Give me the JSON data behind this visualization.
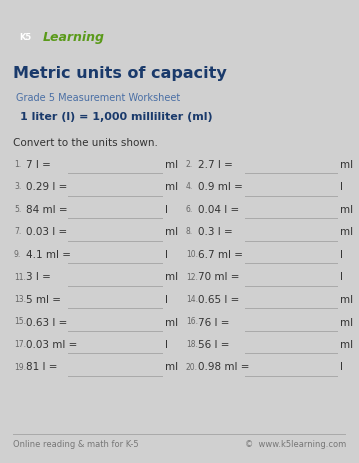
{
  "title": "Metric units of capacity",
  "subtitle": "Grade 5 Measurement Worksheet",
  "formula_box": "1 liter (l) = 1,000 milliliter (ml)",
  "instruction": "Convert to the units shown.",
  "border_color": "#2a5b8c",
  "title_color": "#1a3a6b",
  "subtitle_color": "#4a6fa5",
  "formula_bg": "#d0d0d0",
  "text_color": "#333333",
  "line_color": "#aaaaaa",
  "footer_left": "Online reading & math for K-5",
  "footer_right": "©  www.k5learning.com",
  "problems": [
    {
      "num": "1.",
      "q": "7 l =",
      "unit": "ml"
    },
    {
      "num": "2.",
      "q": "2.7 l =",
      "unit": "ml"
    },
    {
      "num": "3.",
      "q": "0.29 l =",
      "unit": "ml"
    },
    {
      "num": "4.",
      "q": "0.9 ml =",
      "unit": "l"
    },
    {
      "num": "5.",
      "q": "84 ml =",
      "unit": "l"
    },
    {
      "num": "6.",
      "q": "0.04 l =",
      "unit": "ml"
    },
    {
      "num": "7.",
      "q": "0.03 l =",
      "unit": "ml"
    },
    {
      "num": "8.",
      "q": "0.3 l =",
      "unit": "ml"
    },
    {
      "num": "9.",
      "q": "4.1 ml =",
      "unit": "l"
    },
    {
      "num": "10.",
      "q": "6.7 ml =",
      "unit": "l"
    },
    {
      "num": "11.",
      "q": "3 l =",
      "unit": "ml"
    },
    {
      "num": "12.",
      "q": "70 ml =",
      "unit": "l"
    },
    {
      "num": "13.",
      "q": "5 ml =",
      "unit": "l"
    },
    {
      "num": "14.",
      "q": "0.65 l =",
      "unit": "ml"
    },
    {
      "num": "15.",
      "q": "0.63 l =",
      "unit": "ml"
    },
    {
      "num": "16.",
      "q": "76 l =",
      "unit": "ml"
    },
    {
      "num": "17.",
      "q": "0.03 ml =",
      "unit": "l"
    },
    {
      "num": "18.",
      "q": "56 l =",
      "unit": "ml"
    },
    {
      "num": "19.",
      "q": "81 l =",
      "unit": "ml"
    },
    {
      "num": "20.",
      "q": "0.98 ml =",
      "unit": "l"
    }
  ]
}
